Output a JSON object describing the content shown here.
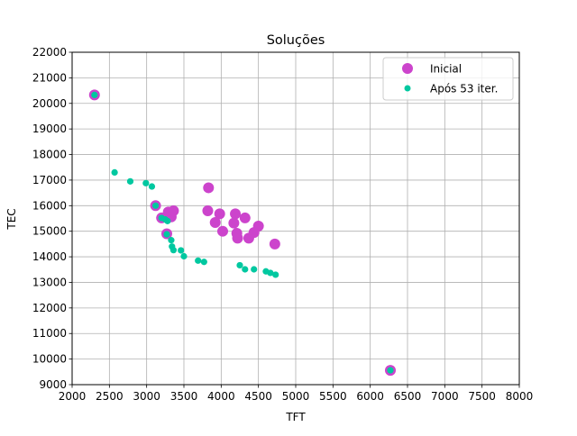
{
  "chart_data": {
    "type": "scatter",
    "title": "Soluções",
    "xlabel": "TFT",
    "ylabel": "TEC",
    "xlim": [
      2000,
      8000
    ],
    "ylim": [
      9000,
      22000
    ],
    "xticks": [
      2000,
      2500,
      3000,
      3500,
      4000,
      4500,
      5000,
      5500,
      6000,
      6500,
      7000,
      7500,
      8000
    ],
    "yticks": [
      9000,
      10000,
      11000,
      12000,
      13000,
      14000,
      15000,
      16000,
      17000,
      18000,
      19000,
      20000,
      21000,
      22000
    ],
    "grid": true,
    "legend_position": "top-right",
    "series": [
      {
        "name": "Inicial",
        "color": "#cc44cc",
        "marker": "large-circle",
        "points": [
          [
            2300,
            20330
          ],
          [
            3120,
            16000
          ],
          [
            3200,
            15520
          ],
          [
            3270,
            15540
          ],
          [
            3290,
            15750
          ],
          [
            3330,
            15560
          ],
          [
            3360,
            15800
          ],
          [
            3270,
            14900
          ],
          [
            3830,
            16700
          ],
          [
            3820,
            15800
          ],
          [
            3920,
            15340
          ],
          [
            3980,
            15680
          ],
          [
            4020,
            15000
          ],
          [
            4170,
            15320
          ],
          [
            4190,
            15680
          ],
          [
            4210,
            14920
          ],
          [
            4220,
            14730
          ],
          [
            4320,
            15520
          ],
          [
            4370,
            14730
          ],
          [
            4440,
            14950
          ],
          [
            4500,
            15200
          ],
          [
            4720,
            14500
          ],
          [
            6270,
            9560
          ]
        ]
      },
      {
        "name": "Após 53 iter.",
        "color": "#00c8a0",
        "marker": "small-circle",
        "points": [
          [
            2300,
            20330
          ],
          [
            2570,
            17300
          ],
          [
            2780,
            16950
          ],
          [
            2990,
            16880
          ],
          [
            3070,
            16750
          ],
          [
            3120,
            16000
          ],
          [
            3200,
            15520
          ],
          [
            3250,
            15460
          ],
          [
            3280,
            15400
          ],
          [
            3270,
            14880
          ],
          [
            3330,
            14650
          ],
          [
            3340,
            14400
          ],
          [
            3360,
            14260
          ],
          [
            3460,
            14250
          ],
          [
            3500,
            14020
          ],
          [
            3690,
            13850
          ],
          [
            3770,
            13800
          ],
          [
            4250,
            13670
          ],
          [
            4320,
            13510
          ],
          [
            4440,
            13510
          ],
          [
            4600,
            13430
          ],
          [
            4660,
            13370
          ],
          [
            4730,
            13300
          ],
          [
            6270,
            9560
          ]
        ]
      }
    ]
  }
}
